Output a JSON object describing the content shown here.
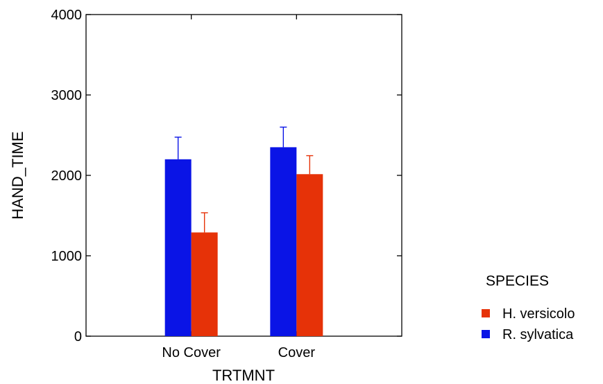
{
  "chart_data": {
    "type": "bar",
    "categories": [
      "No Cover",
      "Cover"
    ],
    "series": [
      {
        "name": "R. sylvatica",
        "color": "#0A14E6",
        "values": [
          2200,
          2350
        ],
        "error_upper": [
          2475,
          2600
        ]
      },
      {
        "name": "H. versicolo",
        "color": "#E63208",
        "values": [
          1290,
          2015
        ],
        "error_upper": [
          1535,
          2245
        ]
      }
    ],
    "xlabel": "TRTMNT",
    "ylabel": "HAND_TIME",
    "ylim": [
      0,
      4000
    ],
    "yticks": [
      "0",
      "1000",
      "2000",
      "3000",
      "4000"
    ],
    "grid": false,
    "legend": {
      "title": "SPECIES",
      "position": "right",
      "items": [
        {
          "label": "H. versicolo",
          "color": "#E63208"
        },
        {
          "label": "R. sylvatica",
          "color": "#0A14E6"
        }
      ]
    }
  }
}
